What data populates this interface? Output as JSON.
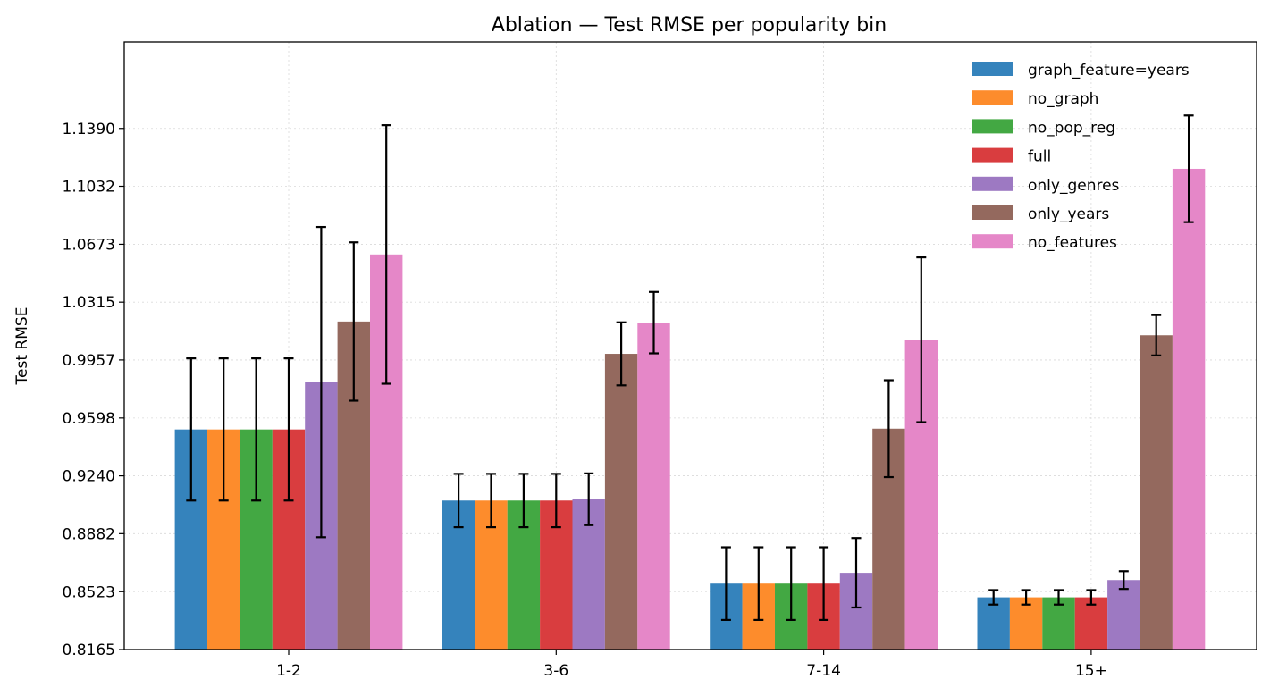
{
  "chart_data": {
    "type": "bar",
    "title": "Ablation — Test RMSE per popularity bin",
    "xlabel": "",
    "ylabel": "Test RMSE",
    "categories": [
      "1-2",
      "3-6",
      "7-14",
      "15+"
    ],
    "ylim": [
      0.8165,
      1.1925
    ],
    "yticks": [
      "0.8165",
      "0.8523",
      "0.8882",
      "0.9240",
      "0.9598",
      "0.9957",
      "1.0315",
      "1.0673",
      "1.1032",
      "1.1390"
    ],
    "grid": true,
    "legend_position": "top-right",
    "series": [
      {
        "name": "graph_feature=years",
        "color": "#3583bc",
        "values": [
          0.9527,
          0.9087,
          0.8573,
          0.8488
        ],
        "errors": [
          0.044,
          0.0165,
          0.0225,
          0.0045
        ]
      },
      {
        "name": "no_graph",
        "color": "#fd8c2c",
        "values": [
          0.9527,
          0.9087,
          0.8573,
          0.8488
        ],
        "errors": [
          0.044,
          0.0165,
          0.0225,
          0.0045
        ]
      },
      {
        "name": "no_pop_reg",
        "color": "#43a843",
        "values": [
          0.9527,
          0.9087,
          0.8573,
          0.8488
        ],
        "errors": [
          0.044,
          0.0165,
          0.0225,
          0.0045
        ]
      },
      {
        "name": "full",
        "color": "#d93d3f",
        "values": [
          0.9527,
          0.9087,
          0.8573,
          0.8488
        ],
        "errors": [
          0.044,
          0.0165,
          0.0225,
          0.0045
        ]
      },
      {
        "name": "only_genres",
        "color": "#9d79c2",
        "values": [
          0.982,
          0.9095,
          0.864,
          0.8595
        ],
        "errors": [
          0.096,
          0.016,
          0.0215,
          0.0055
        ]
      },
      {
        "name": "only_years",
        "color": "#94695e",
        "values": [
          1.0195,
          0.9995,
          0.9532,
          1.011
        ],
        "errors": [
          0.049,
          0.0195,
          0.03,
          0.0125
        ]
      },
      {
        "name": "no_features",
        "color": "#e587c8",
        "values": [
          1.061,
          1.0188,
          1.0082,
          1.114
        ],
        "errors": [
          0.08,
          0.019,
          0.051,
          0.033
        ]
      }
    ]
  }
}
